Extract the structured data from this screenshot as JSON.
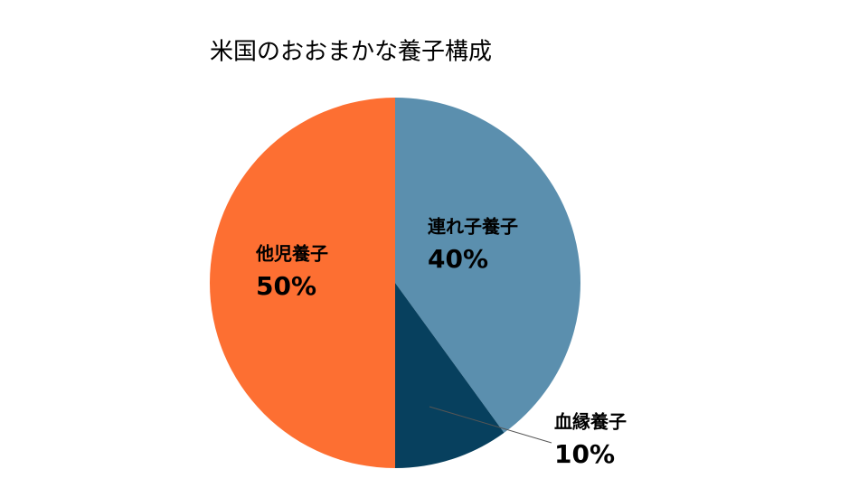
{
  "chart_data": {
    "type": "pie",
    "title": "米国のおおまかな養子構成",
    "categories": [
      "連れ子養子",
      "血縁養子",
      "他児養子"
    ],
    "values": [
      40,
      10,
      50
    ],
    "value_labels": [
      "40%",
      "10%",
      "50%"
    ],
    "colors": [
      "#5b8fae",
      "#07405e",
      "#fd6f32"
    ]
  }
}
